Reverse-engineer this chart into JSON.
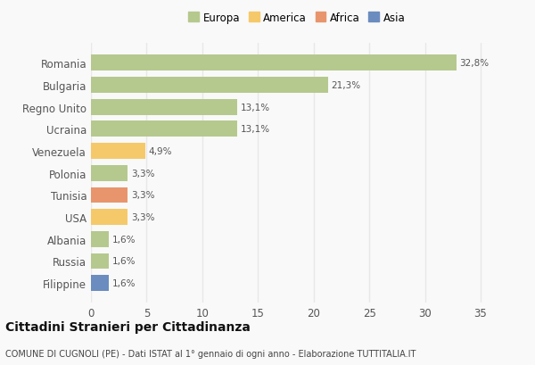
{
  "countries": [
    "Romania",
    "Bulgaria",
    "Regno Unito",
    "Ucraina",
    "Venezuela",
    "Polonia",
    "Tunisia",
    "USA",
    "Albania",
    "Russia",
    "Filippine"
  ],
  "values": [
    32.8,
    21.3,
    13.1,
    13.1,
    4.9,
    3.3,
    3.3,
    3.3,
    1.6,
    1.6,
    1.6
  ],
  "labels": [
    "32,8%",
    "21,3%",
    "13,1%",
    "13,1%",
    "4,9%",
    "3,3%",
    "3,3%",
    "3,3%",
    "1,6%",
    "1,6%",
    "1,6%"
  ],
  "colors": [
    "#b5c98e",
    "#b5c98e",
    "#b5c98e",
    "#b5c98e",
    "#f5c96a",
    "#b5c98e",
    "#e8956d",
    "#f5c96a",
    "#b5c98e",
    "#b5c98e",
    "#6b8cbe"
  ],
  "legend_labels": [
    "Europa",
    "America",
    "Africa",
    "Asia"
  ],
  "legend_colors": [
    "#b5c98e",
    "#f5c96a",
    "#e8956d",
    "#6b8cbe"
  ],
  "title": "Cittadini Stranieri per Cittadinanza",
  "subtitle": "COMUNE DI CUGNOLI (PE) - Dati ISTAT al 1° gennaio di ogni anno - Elaborazione TUTTITALIA.IT",
  "xlim": [
    0,
    37
  ],
  "xticks": [
    0,
    5,
    10,
    15,
    20,
    25,
    30,
    35
  ],
  "background_color": "#f9f9f9",
  "grid_color": "#e8e8e8"
}
